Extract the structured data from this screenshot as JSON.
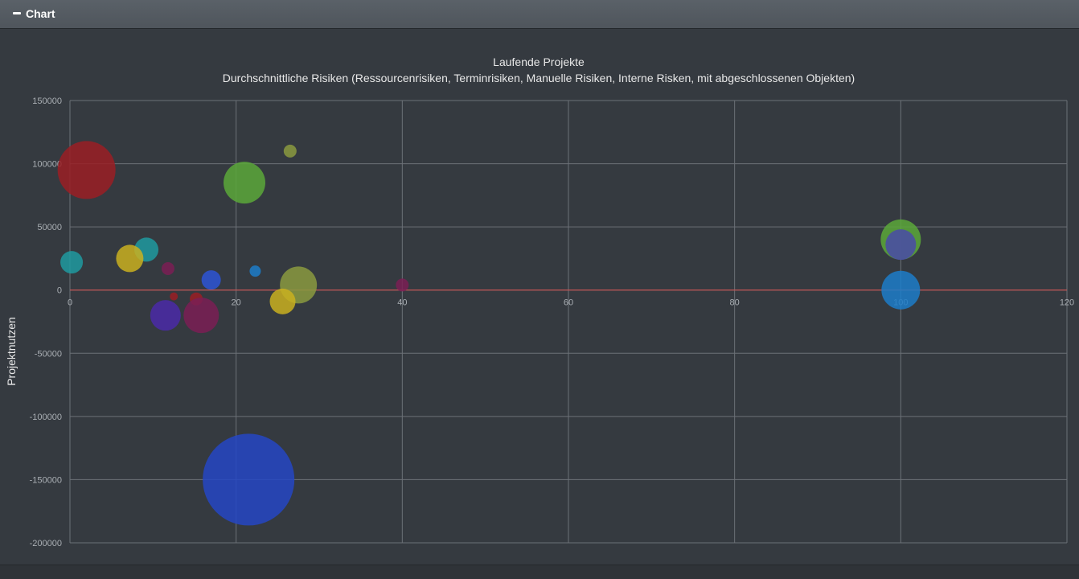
{
  "panel": {
    "title": "Chart",
    "collapse_icon": "minus-icon"
  },
  "colors": {
    "background": "#353a40",
    "grid": "#6c7177",
    "zero_line": "#d9534f",
    "header": "#555b62"
  },
  "chart_data": {
    "type": "scatter",
    "variant": "bubble",
    "title": "Laufende Projekte",
    "subtitle": "Durchschnittliche Risiken (Ressourcenrisiken, Terminrisiken, Manuelle Risiken, Interne Risken, mit abgeschlossenen Objekten)",
    "xlabel": "",
    "ylabel": "Projektnutzen",
    "xlim": [
      0,
      120
    ],
    "ylim": [
      -200000,
      150000
    ],
    "xticks": [
      "0",
      "20",
      "40",
      "60",
      "80",
      "100",
      "120"
    ],
    "yticks": [
      "150000",
      "100000",
      "50000",
      "0",
      "-50000",
      "-100000",
      "-150000",
      "-200000"
    ],
    "grid": true,
    "legend": "none",
    "points": [
      {
        "x": 2,
        "y": 95000,
        "size": 36,
        "color": "#9a1f24"
      },
      {
        "x": 21,
        "y": 85000,
        "size": 26,
        "color": "#5aa83a"
      },
      {
        "x": 26.5,
        "y": 110000,
        "size": 8,
        "color": "#8a9a40"
      },
      {
        "x": 9.2,
        "y": 32000,
        "size": 15,
        "color": "#1e9aa0"
      },
      {
        "x": 0.2,
        "y": 22000,
        "size": 14,
        "color": "#1e9aa0"
      },
      {
        "x": 7.2,
        "y": 25000,
        "size": 17,
        "color": "#c9b020"
      },
      {
        "x": 11.8,
        "y": 17000,
        "size": 8,
        "color": "#7a1f55"
      },
      {
        "x": 17,
        "y": 8000,
        "size": 12,
        "color": "#2d55d6"
      },
      {
        "x": 22.3,
        "y": 15000,
        "size": 7,
        "color": "#1c7cc9"
      },
      {
        "x": 27.5,
        "y": 4000,
        "size": 23,
        "color": "#8a9a40"
      },
      {
        "x": 25.6,
        "y": -9000,
        "size": 16,
        "color": "#c9b020"
      },
      {
        "x": 40,
        "y": 4000,
        "size": 8,
        "color": "#7a1f55"
      },
      {
        "x": 12.5,
        "y": -5000,
        "size": 5,
        "color": "#9a1f24"
      },
      {
        "x": 15.2,
        "y": -7000,
        "size": 8,
        "color": "#9a1f24"
      },
      {
        "x": 11.5,
        "y": -20000,
        "size": 19,
        "color": "#4a2aa8"
      },
      {
        "x": 15.8,
        "y": -20000,
        "size": 22,
        "color": "#7a1f55"
      },
      {
        "x": 100,
        "y": 40000,
        "size": 25,
        "color": "#5aa83a"
      },
      {
        "x": 100,
        "y": 36000,
        "size": 19,
        "color": "#4a4aa8"
      },
      {
        "x": 100,
        "y": 0,
        "size": 24,
        "color": "#1c7cc9"
      },
      {
        "x": 21.5,
        "y": -150000,
        "size": 57,
        "color": "#2447c4"
      }
    ]
  }
}
